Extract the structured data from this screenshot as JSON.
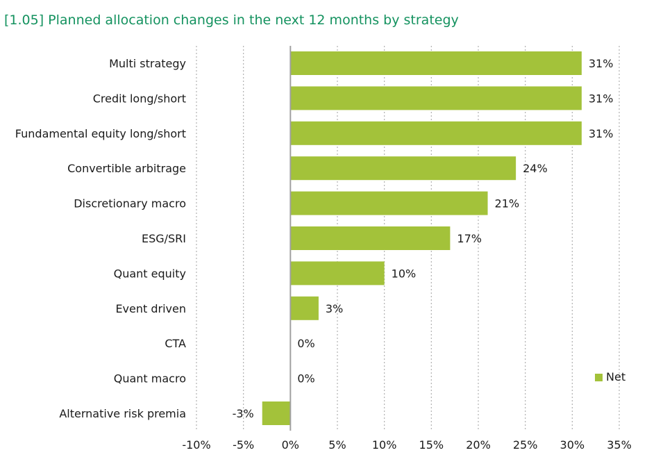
{
  "chart_data": {
    "type": "bar",
    "orientation": "horizontal",
    "title": "[1.05] Planned allocation changes in the next 12 months by strategy",
    "categories": [
      "Multi strategy",
      "Credit long/short",
      "Fundamental equity long/short",
      "Convertible arbitrage",
      "Discretionary macro",
      "ESG/SRI",
      "Quant equity",
      "Event driven",
      "CTA",
      "Quant macro",
      "Alternative risk premia"
    ],
    "series": [
      {
        "name": "Net",
        "color": "#a3c23a",
        "values": [
          31,
          31,
          31,
          24,
          21,
          17,
          10,
          3,
          0,
          0,
          -3
        ],
        "labels": [
          "31%",
          "31%",
          "31%",
          "24%",
          "21%",
          "17%",
          "10%",
          "3%",
          "0%",
          "0%",
          "-3%"
        ]
      }
    ],
    "xlim": [
      -10,
      35
    ],
    "xticks": [
      -10,
      -5,
      0,
      5,
      10,
      15,
      20,
      25,
      30,
      35
    ],
    "xtick_labels": [
      "-10%",
      "-5%",
      "0%",
      "5%",
      "10%",
      "15%",
      "20%",
      "25%",
      "30%",
      "35%"
    ],
    "xlabel": "",
    "ylabel": "",
    "grid": "vertical dotted",
    "legend_position": "right"
  },
  "colors": {
    "title": "#14925f",
    "bar": "#a3c23a",
    "grid": "#b0b0b0",
    "zero_axis": "#a0a0a0"
  }
}
